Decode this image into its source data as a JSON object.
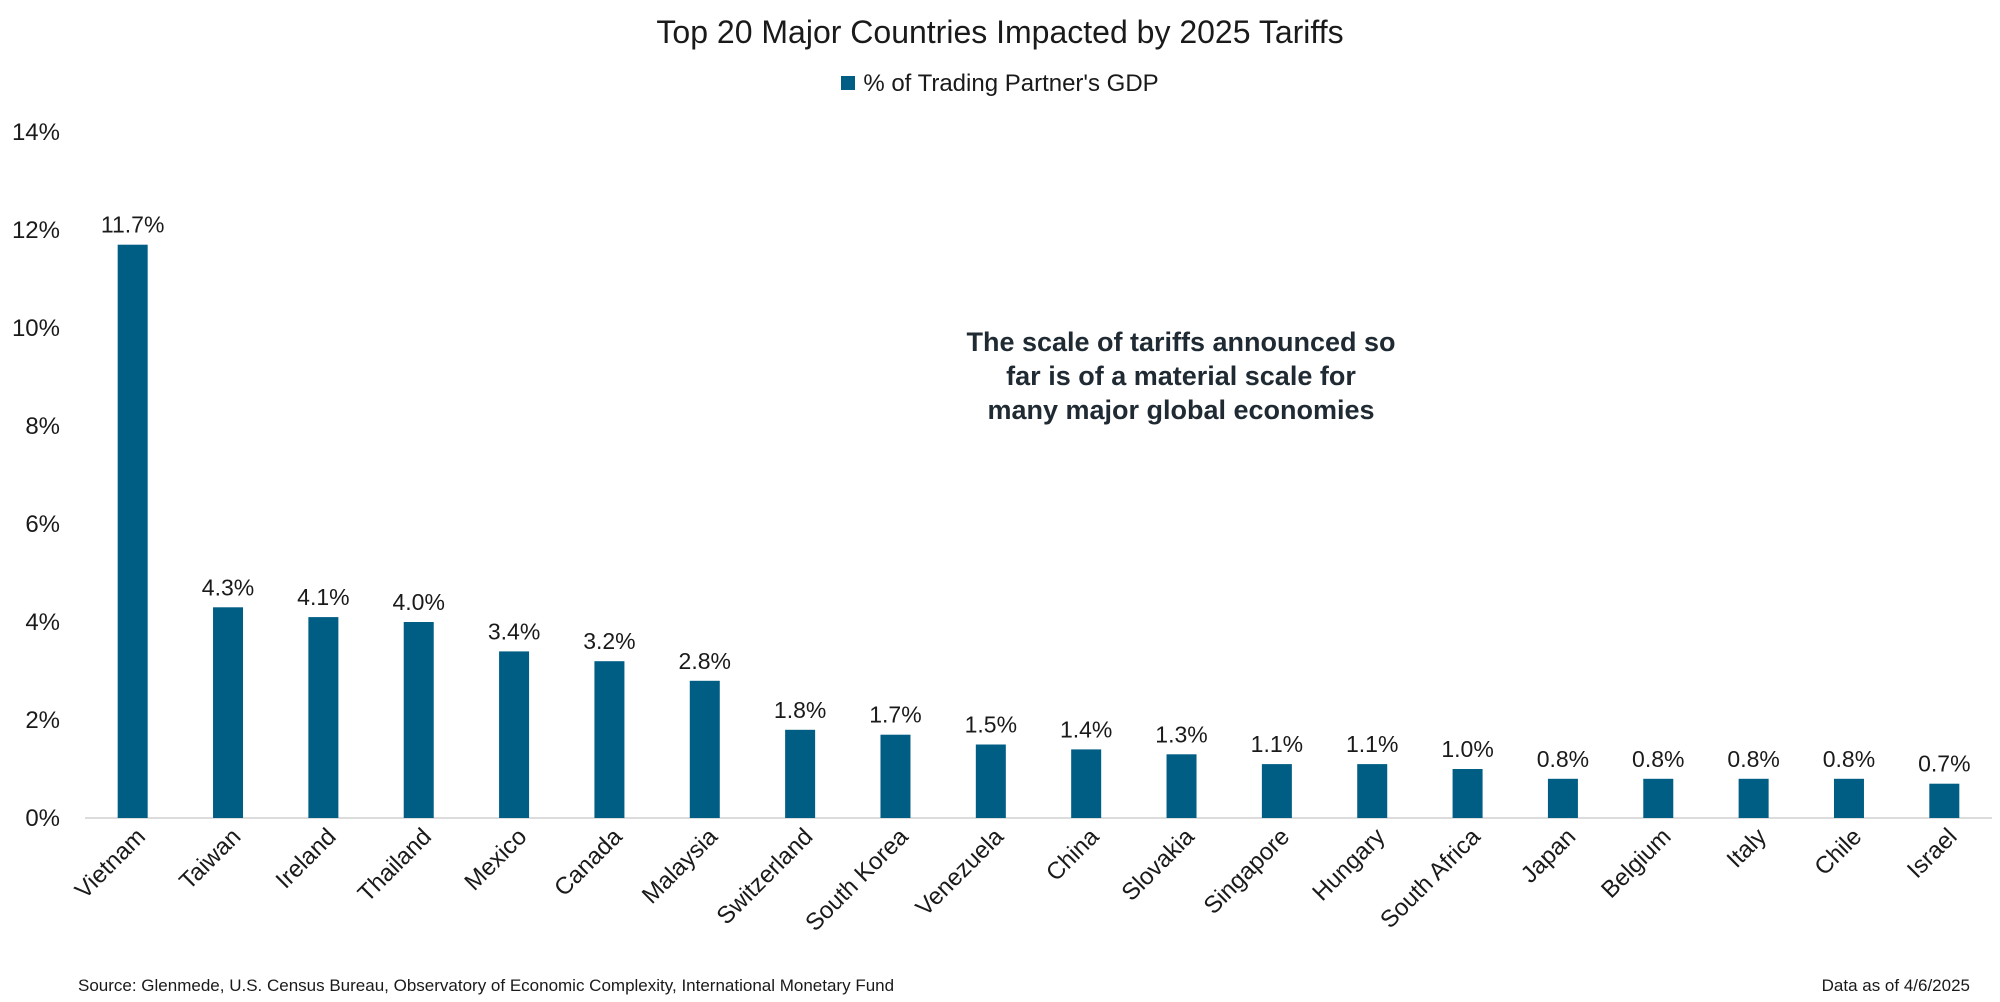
{
  "chart_data": {
    "type": "bar",
    "title": "Top 20 Major Countries Impacted by 2025 Tariffs",
    "legend": "% of Trading Partner's GDP",
    "legend_position": "top-center",
    "categories": [
      "Vietnam",
      "Taiwan",
      "Ireland",
      "Thailand",
      "Mexico",
      "Canada",
      "Malaysia",
      "Switzerland",
      "South Korea",
      "Venezuela",
      "China",
      "Slovakia",
      "Singapore",
      "Hungary",
      "South Africa",
      "Japan",
      "Belgium",
      "Italy",
      "Chile",
      "Israel"
    ],
    "values": [
      11.7,
      4.3,
      4.1,
      4.0,
      3.4,
      3.2,
      2.8,
      1.8,
      1.7,
      1.5,
      1.4,
      1.3,
      1.1,
      1.1,
      1.0,
      0.8,
      0.8,
      0.8,
      0.8,
      0.7
    ],
    "data_labels": [
      "11.7%",
      "4.3%",
      "4.1%",
      "4.0%",
      "3.4%",
      "3.2%",
      "2.8%",
      "1.8%",
      "1.7%",
      "1.5%",
      "1.4%",
      "1.3%",
      "1.1%",
      "1.1%",
      "1.0%",
      "0.8%",
      "0.8%",
      "0.8%",
      "0.8%",
      "0.7%"
    ],
    "ylim": [
      0,
      14
    ],
    "y_ticks": [
      0,
      2,
      4,
      6,
      8,
      10,
      12,
      14
    ],
    "y_tick_labels": [
      "0%",
      "2%",
      "4%",
      "6%",
      "8%",
      "10%",
      "12%",
      "14%"
    ],
    "grid": false,
    "bar_color": "#005e85",
    "annotation": "The scale of tariffs announced so far is of a material scale for many major global economies"
  },
  "footer": {
    "source": "Source: Glenmede, U.S. Census Bureau, Observatory of Economic Complexity, International Monetary Fund",
    "date_note": "Data as of 4/6/2025"
  }
}
